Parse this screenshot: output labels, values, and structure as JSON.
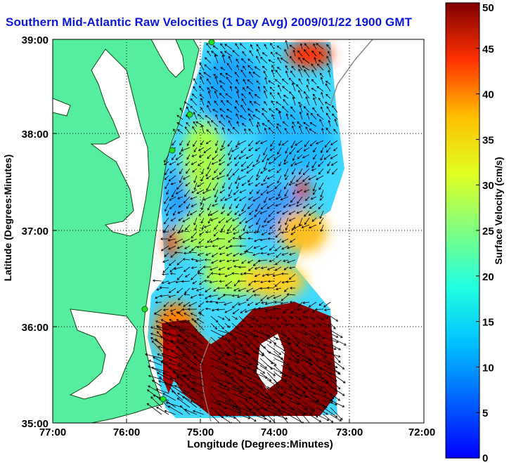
{
  "title": "Southern Mid-Atlantic Raw Velocities (1 Day Avg) 2009/01/22 1900 GMT",
  "x_axis": {
    "label": "Longitude (Degrees:Minutes)",
    "ticks": [
      {
        "value": -77,
        "label": "77:00"
      },
      {
        "value": -76,
        "label": "76:00"
      },
      {
        "value": -75,
        "label": "75:00"
      },
      {
        "value": -74,
        "label": "74:00"
      },
      {
        "value": -73,
        "label": "73:00"
      },
      {
        "value": -72,
        "label": "72:00"
      }
    ],
    "range": [
      -77,
      -72
    ]
  },
  "y_axis": {
    "label": "Latitude (Degrees:Minutes)",
    "ticks": [
      {
        "value": 35,
        "label": "35:00"
      },
      {
        "value": 36,
        "label": "36:00"
      },
      {
        "value": 37,
        "label": "37:00"
      },
      {
        "value": 38,
        "label": "38:00"
      },
      {
        "value": 39,
        "label": "39:00"
      }
    ],
    "range": [
      35,
      39
    ]
  },
  "colorbar": {
    "label": "Surface Velocity (cm/s)",
    "range": [
      0,
      50
    ],
    "ticks": [
      {
        "value": 0,
        "label": "0"
      },
      {
        "value": 5,
        "label": "5"
      },
      {
        "value": 10,
        "label": "10"
      },
      {
        "value": 15,
        "label": "15"
      },
      {
        "value": 20,
        "label": "20"
      },
      {
        "value": 25,
        "label": "25"
      },
      {
        "value": 30,
        "label": "30"
      },
      {
        "value": 35,
        "label": "35"
      },
      {
        "value": 40,
        "label": "40"
      },
      {
        "value": 45,
        "label": "45"
      },
      {
        "value": 50,
        "label": "50"
      }
    ],
    "colormap": "jet"
  },
  "colors": {
    "title": "#0a18d8",
    "land": "#55eea0",
    "coastline": "#114411",
    "station": "#22dd22",
    "arrow": "#000000",
    "grid": "#000000"
  },
  "grid": "dotted",
  "stations_count_visible": 5
}
